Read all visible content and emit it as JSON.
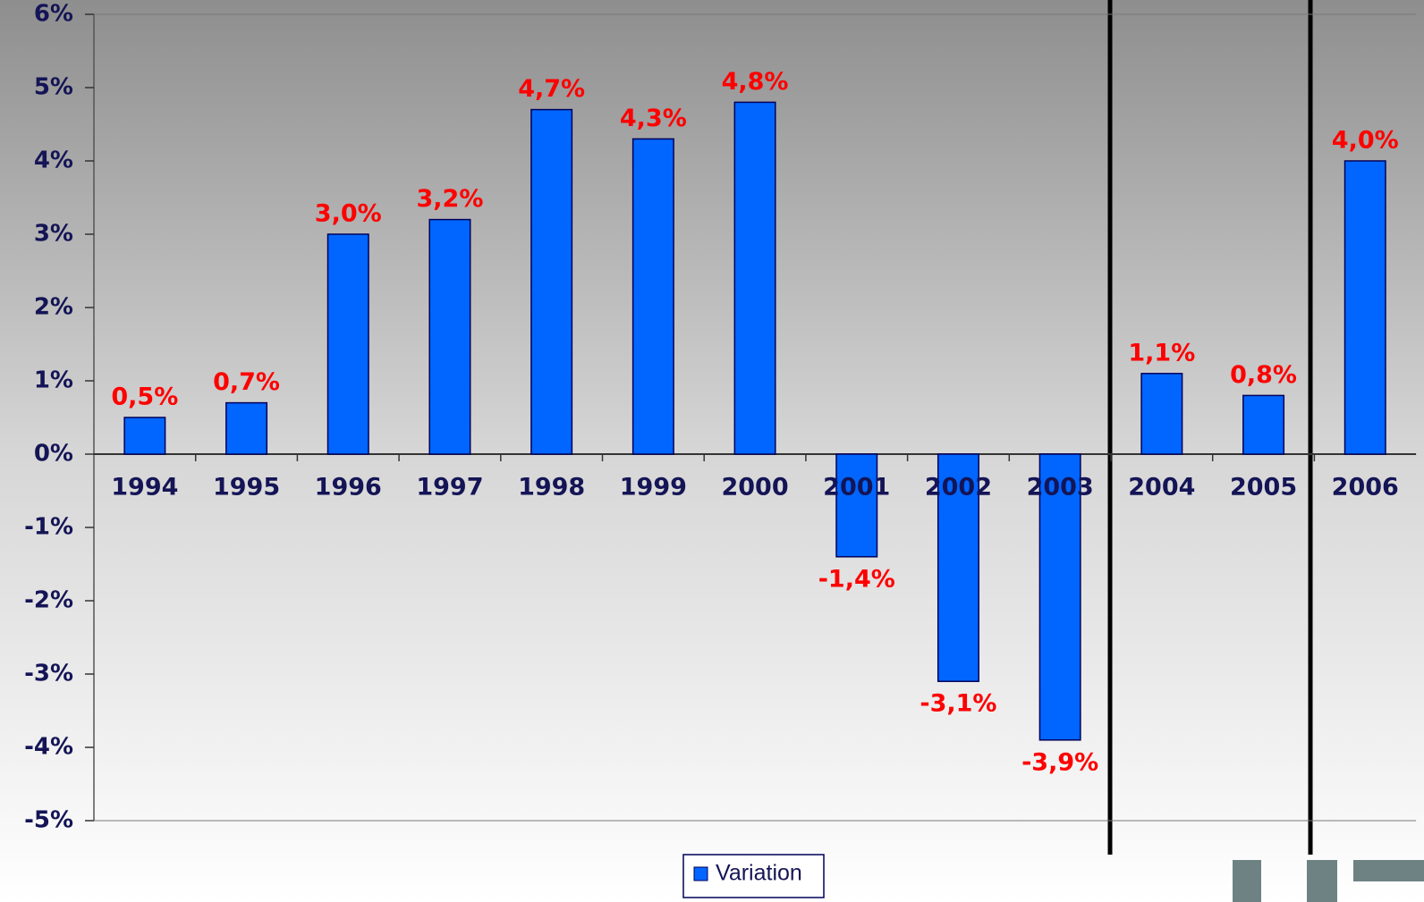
{
  "chart_data": {
    "type": "bar",
    "categories": [
      "1994",
      "1995",
      "1996",
      "1997",
      "1998",
      "1999",
      "2000",
      "2001",
      "2002",
      "2003",
      "2004",
      "2005",
      "2006"
    ],
    "series": [
      {
        "name": "Variation",
        "color": "#0066ff",
        "values": [
          0.5,
          0.7,
          3.0,
          3.2,
          4.7,
          4.3,
          4.8,
          -1.4,
          -3.1,
          -3.9,
          1.1,
          0.8,
          4.0
        ],
        "value_labels": [
          "0,5%",
          "0,7%",
          "3,0%",
          "3,2%",
          "4,7%",
          "4,3%",
          "4,8%",
          "-1,4%",
          "-3,1%",
          "-3,9%",
          "1,1%",
          "0,8%",
          "4,0%"
        ]
      }
    ],
    "ylim": [
      -5,
      6
    ],
    "yticks": [
      {
        "value": -5,
        "label": "-5%"
      },
      {
        "value": -4,
        "label": "-4%"
      },
      {
        "value": -3,
        "label": "-3%"
      },
      {
        "value": -2,
        "label": "-2%"
      },
      {
        "value": -1,
        "label": "-1%"
      },
      {
        "value": 0,
        "label": "0%"
      },
      {
        "value": 1,
        "label": "1%"
      },
      {
        "value": 2,
        "label": "2%"
      },
      {
        "value": 3,
        "label": "3%"
      },
      {
        "value": 4,
        "label": "4%"
      },
      {
        "value": 5,
        "label": "5%"
      },
      {
        "value": 6,
        "label": "6%"
      }
    ],
    "legend": "bottom"
  }
}
